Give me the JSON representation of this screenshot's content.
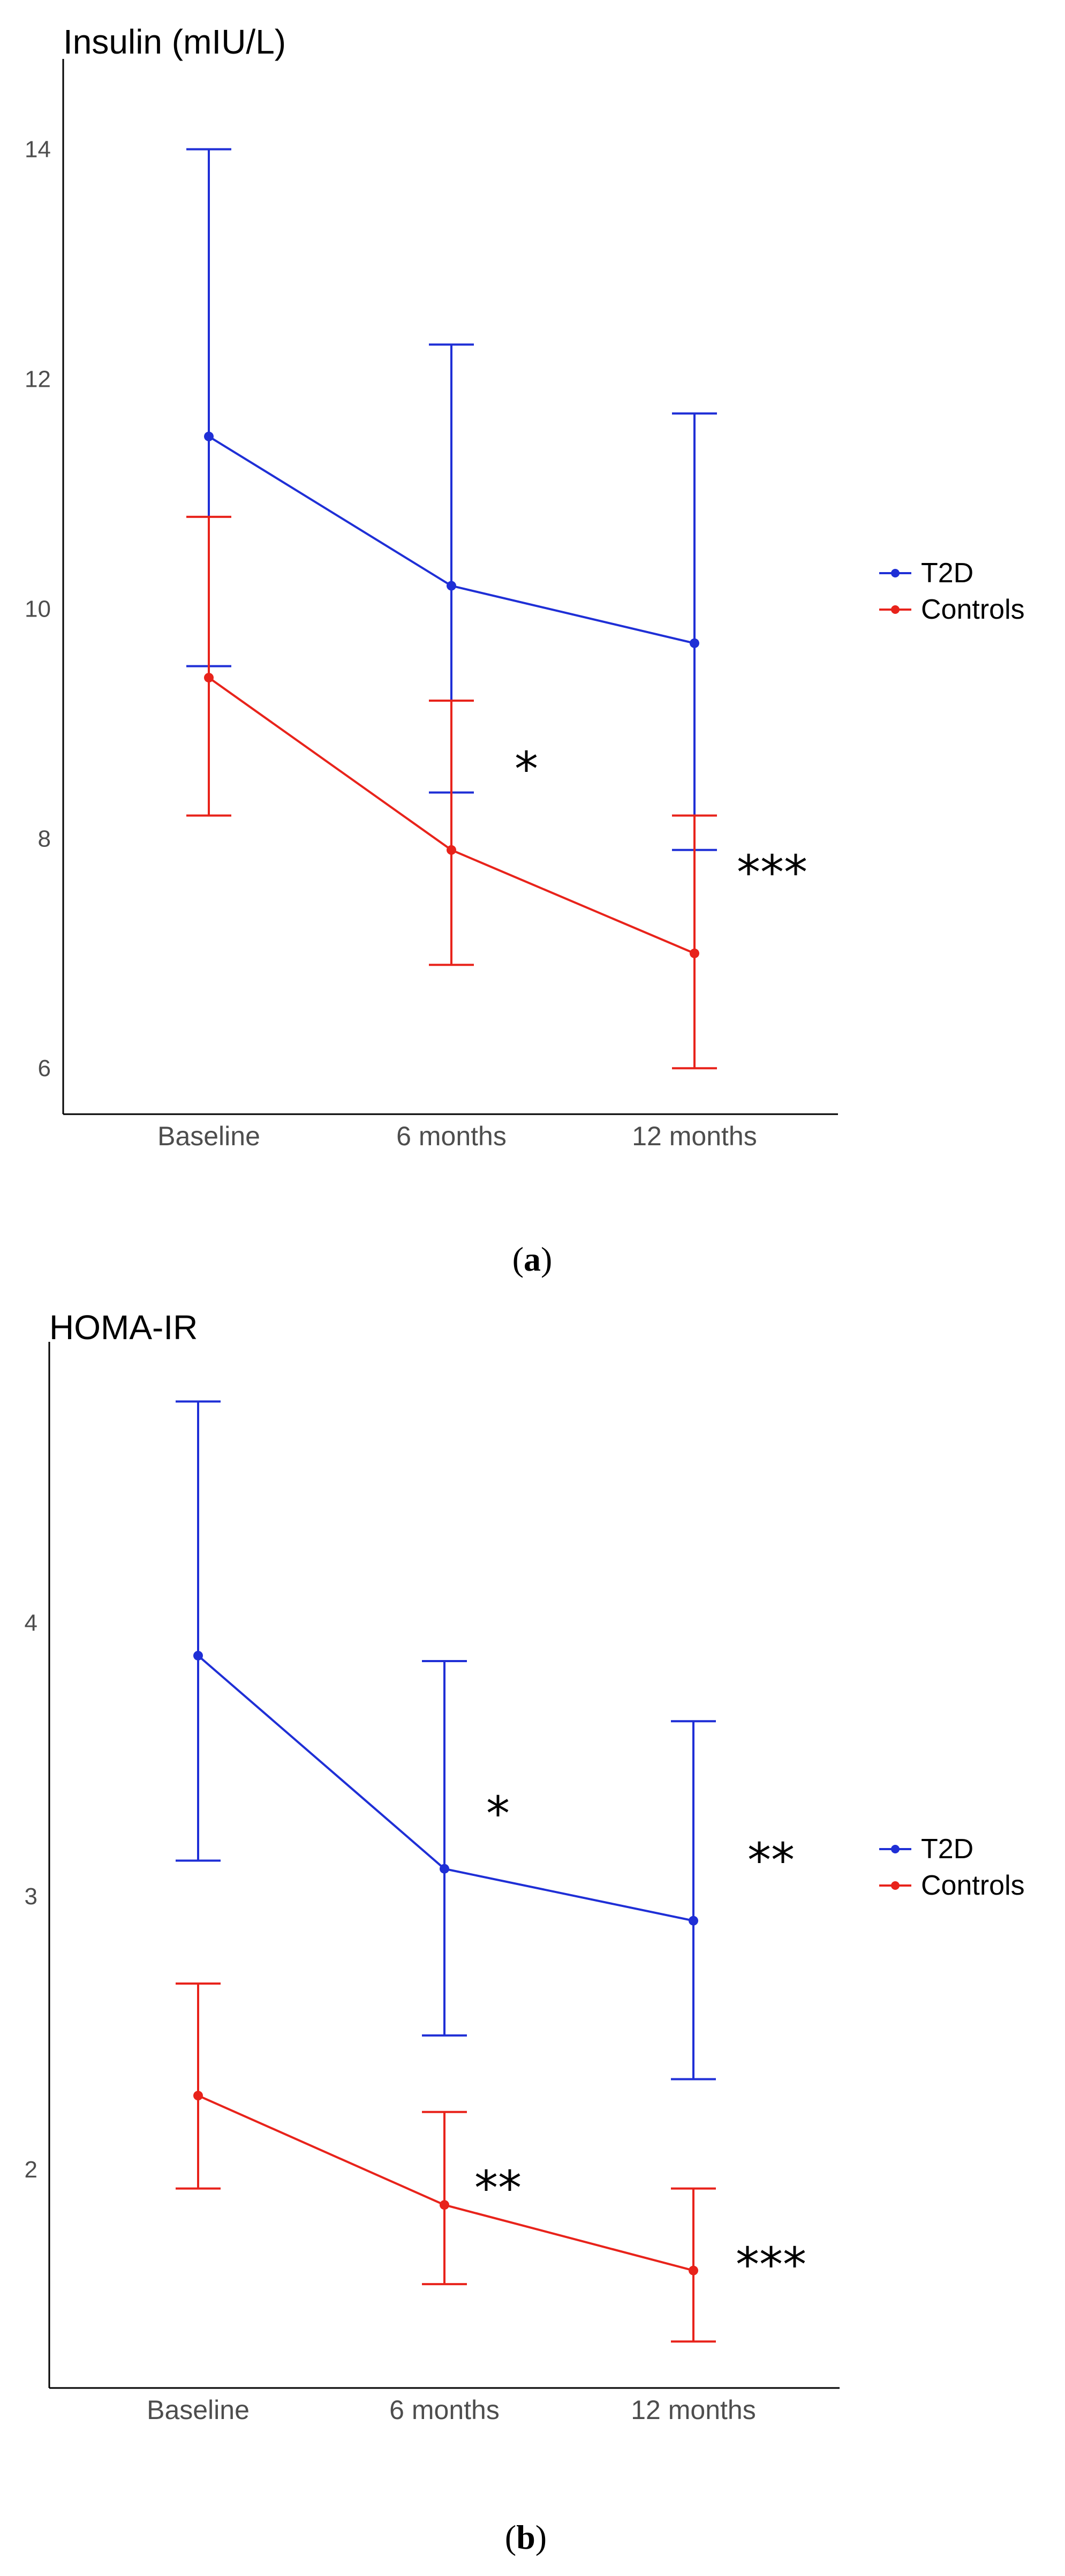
{
  "colors": {
    "t2d": "#1f2fd6",
    "controls": "#e8231b",
    "axis": "#000000"
  },
  "legend": {
    "items": [
      "T2D",
      "Controls"
    ]
  },
  "chart_data": [
    {
      "type": "line",
      "panel": "a",
      "title": "Insulin (mIU/L)",
      "caption_letter": "a",
      "categories": [
        "Baseline",
        "6 months",
        "12 months"
      ],
      "ylim": [
        5.6,
        14.6
      ],
      "yticks": [
        "6",
        "8",
        "10",
        "12",
        "14"
      ],
      "series": [
        {
          "name": "T2D",
          "values": [
            11.5,
            10.2,
            9.7
          ],
          "lower": [
            9.5,
            8.4,
            7.9
          ],
          "upper": [
            14.0,
            12.3,
            11.7
          ]
        },
        {
          "name": "Controls",
          "values": [
            9.4,
            7.9,
            7.0
          ],
          "lower": [
            8.2,
            6.9,
            6.0
          ],
          "upper": [
            10.8,
            9.2,
            8.2
          ]
        }
      ],
      "annotations": [
        {
          "text": "*",
          "category": "6 months",
          "y": 8.6
        },
        {
          "text": "***",
          "category": "12 months",
          "y": 7.7
        }
      ]
    },
    {
      "type": "line",
      "panel": "b",
      "title": "HOMA-IR",
      "caption_letter": "b",
      "categories": [
        "Baseline",
        "6 months",
        "12 months"
      ],
      "ylim": [
        1.2,
        4.95
      ],
      "yticks": [
        "2",
        "3",
        "4"
      ],
      "series": [
        {
          "name": "T2D",
          "values": [
            3.88,
            3.1,
            2.91
          ],
          "lower": [
            3.13,
            2.49,
            2.33
          ],
          "upper": [
            4.81,
            3.86,
            3.64
          ]
        },
        {
          "name": "Controls",
          "values": [
            2.27,
            1.87,
            1.63
          ],
          "lower": [
            1.93,
            1.58,
            1.37
          ],
          "upper": [
            2.68,
            2.21,
            1.93
          ]
        }
      ],
      "annotations": [
        {
          "text": "*",
          "category": "6 months",
          "y": 3.3
        },
        {
          "text": "**",
          "category": "12 months",
          "y": 3.13
        },
        {
          "text": "**",
          "category": "6 months",
          "y": 1.93
        },
        {
          "text": "***",
          "category": "12 months",
          "y": 1.65
        }
      ]
    }
  ]
}
